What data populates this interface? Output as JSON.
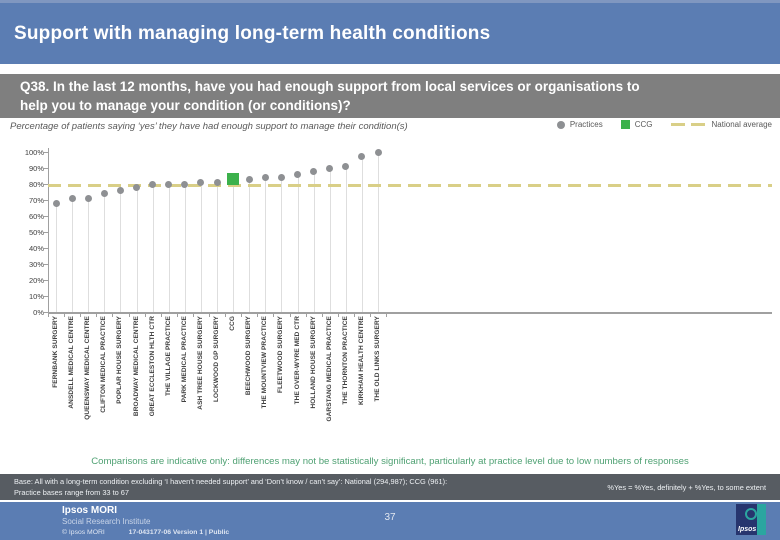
{
  "slide": {
    "title": "Support with managing long-term health conditions",
    "question": "Q38. In the last 12 months, have you had enough support from local services or organisations to\nhelp you to manage your condition (or conditions)?",
    "subtitle": "Percentage of patients saying ‘yes’ they have had enough support to manage their condition(s)",
    "comparison_note": "Comparisons are indicative only: differences may not be statistically significant, particularly at practice level due to low numbers of responses",
    "base_line1": "Base: All with a long-term condition excluding ‘I haven’t needed support’ and ‘Don’t know / can’t say’: National (294,987); CCG (961):",
    "base_line2": "Practice bases range from 33 to 67",
    "base_right": "%Yes = %Yes, definitely + %Yes, to some extent",
    "page_number": "37",
    "footer": {
      "brand": "Ipsos MORI",
      "brand_sub": "Social Research Institute",
      "copyright": "© Ipsos MORI",
      "project": "17-043177-06 Version 1 | Public",
      "logo_text": "Ipsos"
    }
  },
  "chart_data": {
    "type": "scatter",
    "title": "Percentage of patients saying ‘yes’ they have had enough support to manage their condition(s)",
    "ylim": [
      0,
      100
    ],
    "ytick_step": 10,
    "ytick_suffix": "%",
    "grid": "drop-lines",
    "legend_position": "top-right",
    "national_average": 79,
    "categories": [
      "FERNBANK SURGERY",
      "ANSDELL MEDICAL CENTRE",
      "QUEENSWAY MEDICAL CENTRE",
      "CLIFTON MEDICAL PRACTICE",
      "POPLAR HOUSE SURGERY",
      "BROADWAY MEDICAL CENTRE",
      "GREAT ECCLESTON HLTH CTR",
      "THE VILLAGE PRACTICE",
      "PARK MEDICAL PRACTICE",
      "ASH TREE HOUSE SURGERY",
      "LOCKWOOD GP SURGERY",
      "CCG",
      "BEECHWOOD SURGERY",
      "THE MOUNTVIEW PRACTICE",
      "FLEETWOOD SURGERY",
      "THE OVER-WYRE MED CTR",
      "HOLLAND HOUSE SURGERY",
      "GARSTANG MEDICAL PRACTICE",
      "THE THORNTON PRACTICE",
      "KIRKHAM HEALTH CENTRE",
      "THE OLD LINKS SURGERY"
    ],
    "values": [
      68,
      71,
      71,
      74,
      76,
      78,
      80,
      80,
      80,
      81,
      81,
      83,
      83,
      84,
      84,
      86,
      88,
      90,
      91,
      97,
      100
    ],
    "ccg_index": 11,
    "series": [
      {
        "name": "Practices",
        "marker": "circle",
        "color": "#8e9093"
      },
      {
        "name": "CCG",
        "marker": "square",
        "color": "#3cb14c"
      },
      {
        "name": "National average",
        "marker": "dashed-line",
        "color": "#d9cf87"
      }
    ],
    "colors": {
      "axis": "#a0a0a0",
      "drop_line": "#dedede",
      "practice_dot": "#8e9093",
      "ccg_square": "#3cb14c",
      "national_dash": "#d9cf87"
    }
  }
}
